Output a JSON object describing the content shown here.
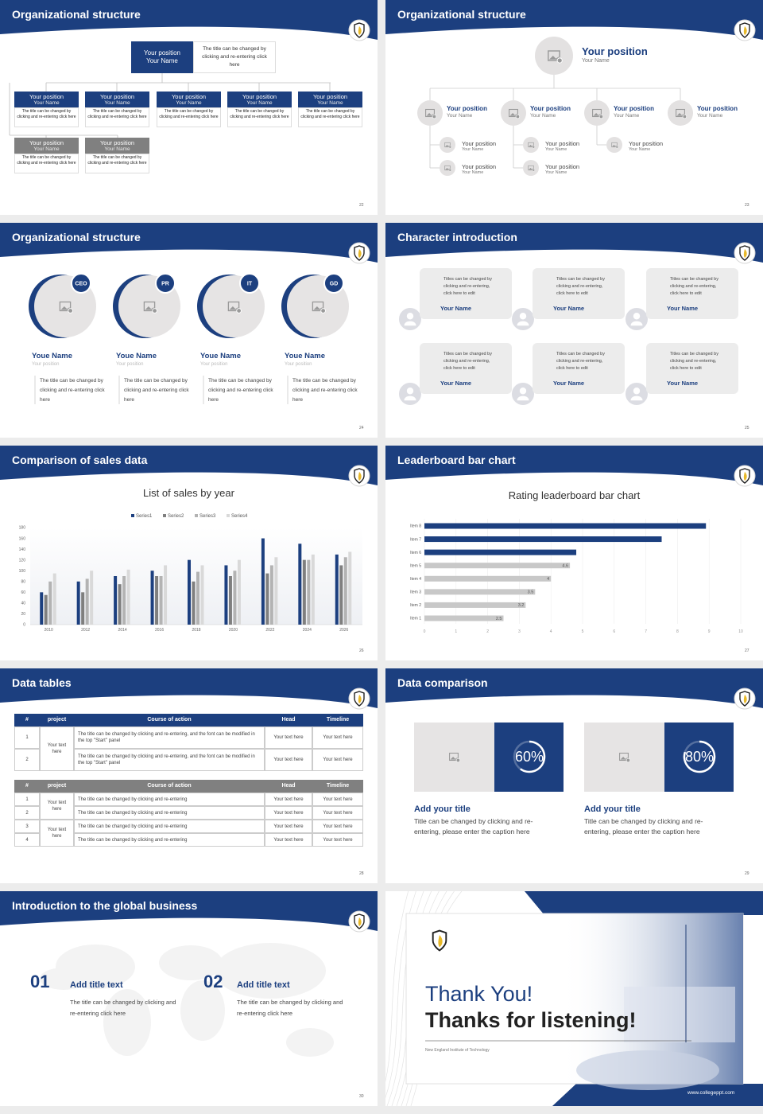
{
  "slides": [
    {
      "title": "Organizational structure",
      "page": "22",
      "top": {
        "position": "Your position",
        "name": "Your Name",
        "text": "The title can be changed by clicking and re-entering click here"
      },
      "members": [
        {
          "position": "Your position",
          "name": "Your Name",
          "text": "The title can be changed by clicking and re-entering click here"
        },
        {
          "position": "Your position",
          "name": "Your Name",
          "text": "The title can be changed by clicking and re-entering click here"
        },
        {
          "position": "Your position",
          "name": "Your Name",
          "text": "The title can be changed by clicking and re-entering click here"
        },
        {
          "position": "Your position",
          "name": "Your Name",
          "text": "The title can be changed by clicking and re-entering click here"
        },
        {
          "position": "Your position",
          "name": "Your Name",
          "text": "The title can be changed by clicking and re-entering click here"
        },
        {
          "position": "Your position",
          "name": "Your Name",
          "text": "The title can be changed by clicking and re-entering click here"
        },
        {
          "position": "Your position",
          "name": "Your Name",
          "text": "The title can be changed by clicking and re-entering click here"
        }
      ]
    },
    {
      "title": "Organizational structure",
      "page": "23",
      "top": {
        "position": "Your position",
        "name": "Your Name"
      },
      "level2": [
        {
          "position": "Your position",
          "name": "Your Name"
        },
        {
          "position": "Your position",
          "name": "Your Name"
        },
        {
          "position": "Your position",
          "name": "Your Name"
        },
        {
          "position": "Your position",
          "name": "Your Name"
        }
      ],
      "level3": [
        {
          "position": "Your position",
          "name": "Your Name"
        },
        {
          "position": "Your position",
          "name": "Your Name"
        },
        {
          "position": "Your position",
          "name": "Your Name"
        },
        {
          "position": "Your position",
          "name": "Your Name"
        },
        {
          "position": "Your position",
          "name": "Your Name"
        }
      ]
    },
    {
      "title": "Organizational structure",
      "page": "24",
      "people": [
        {
          "badge": "CEO",
          "name": "Youe Name",
          "role": "Your position",
          "text": "The title can be changed by clicking and re-entering click here"
        },
        {
          "badge": "PR",
          "name": "Youe Name",
          "role": "Your position",
          "text": "The title can be changed by clicking and re-entering click here"
        },
        {
          "badge": "IT",
          "name": "Youe Name",
          "role": "Your position",
          "text": "The title can be changed by clicking and re-entering click here"
        },
        {
          "badge": "GD",
          "name": "Youe Name",
          "role": "Your position",
          "text": "The title can be changed by clicking and re-entering click here"
        }
      ]
    },
    {
      "title": "Character introduction",
      "page": "25",
      "cards": [
        {
          "text": "Titles can be changed by clicking and re-entering, click here to edit",
          "name": "Your Name"
        },
        {
          "text": "Titles can be changed by clicking and re-entering, click here to edit",
          "name": "Your Name"
        },
        {
          "text": "Titles can be changed by clicking and re-entering, click here to edit",
          "name": "Your Name"
        },
        {
          "text": "Titles can be changed by clicking and re-entering, click here to edit",
          "name": "Your Name"
        },
        {
          "text": "Titles can be changed by clicking and re-entering, click here to edit",
          "name": "Your Name"
        },
        {
          "text": "Titles can be changed by clicking and re-entering, click here to edit",
          "name": "Your Name"
        }
      ]
    },
    {
      "title": "Comparison of sales data",
      "page": "26"
    },
    {
      "title": "Leaderboard bar chart",
      "page": "27"
    },
    {
      "title": "Data tables",
      "page": "28",
      "tables": [
        {
          "header": [
            "#",
            "project",
            "Course of action",
            "Head",
            "Timeline"
          ],
          "groups": [
            {
              "project": "Your text here",
              "rows": [
                [
                  "1",
                  "The title can be changed by clicking and re-entering, and the font can be modified in the top \"Start\" panel",
                  "Your text here",
                  "Your text here"
                ],
                [
                  "2",
                  "The title can be changed by clicking and re-entering, and the font can be modified in the top \"Start\" panel",
                  "Your text here",
                  "Your text here"
                ]
              ]
            }
          ]
        },
        {
          "header": [
            "#",
            "project",
            "Course of action",
            "Head",
            "Timeline"
          ],
          "groups": [
            {
              "project": "Your text here",
              "rows": [
                [
                  "1",
                  "The title can be changed by clicking and re-entering",
                  "Your text here",
                  "Your text here"
                ],
                [
                  "2",
                  "The title can be changed by clicking and re-entering",
                  "Your text here",
                  "Your text here"
                ]
              ]
            },
            {
              "project": "Your text here",
              "rows": [
                [
                  "3",
                  "The title can be changed by clicking and re-entering",
                  "Your text here",
                  "Your text here"
                ],
                [
                  "4",
                  "The title can be changed by clicking and re-entering",
                  "Your text here",
                  "Your text here"
                ]
              ]
            }
          ]
        }
      ]
    },
    {
      "title": "Data comparison",
      "page": "29",
      "items": [
        {
          "percent": 60,
          "percent_label": "60%",
          "title": "Add your title",
          "text": "Title can be changed by clicking and re-entering, please enter the caption here"
        },
        {
          "percent": 80,
          "percent_label": "80%",
          "title": "Add your title",
          "text": "Title can be changed by clicking and re-entering, please enter the caption here"
        }
      ]
    },
    {
      "title": "Introduction to the global business",
      "page": "30",
      "items": [
        {
          "number": "01",
          "title": "Add title text",
          "text": "The title can be changed by clicking and re-entering click here"
        },
        {
          "number": "02",
          "title": "Add title text",
          "text": "The title can be changed by clicking and re-entering click here"
        }
      ]
    },
    {
      "thanks": "Thank You!",
      "subtitle": "Thanks for listening!",
      "school": "New England Institute of Technology",
      "url": "www.collegeppt.com"
    }
  ],
  "chart_data": [
    {
      "type": "bar",
      "title": "List of sales by year",
      "categories": [
        "2010",
        "2012",
        "2014",
        "2016",
        "2018",
        "2020",
        "2022",
        "2024",
        "2026"
      ],
      "series": [
        {
          "name": "Series1",
          "color": "#1c3f7f",
          "values": [
            60,
            80,
            90,
            100,
            120,
            110,
            160,
            150,
            130
          ]
        },
        {
          "name": "Series2",
          "color": "#7f7f7f",
          "values": [
            55,
            60,
            75,
            90,
            80,
            90,
            95,
            120,
            110
          ]
        },
        {
          "name": "Series3",
          "color": "#b3b3b3",
          "values": [
            80,
            85,
            90,
            90,
            98,
            100,
            110,
            120,
            125
          ]
        },
        {
          "name": "Series4",
          "color": "#d9d9d9",
          "values": [
            95,
            100,
            102,
            110,
            110,
            120,
            125,
            130,
            135
          ]
        }
      ],
      "ylim": [
        0,
        180
      ],
      "yticks": [
        0,
        20,
        40,
        60,
        80,
        100,
        120,
        140,
        160,
        180
      ]
    },
    {
      "type": "bar",
      "horizontal": true,
      "title": "Rating leaderboard bar chart",
      "categories": [
        "Item 1",
        "Item 2",
        "Item 3",
        "Item 4",
        "Item 5",
        "Item 6",
        "Item 7",
        "Item 8"
      ],
      "values": [
        2.5,
        3.2,
        3.5,
        4,
        4.6,
        4.8,
        7.5,
        8.9
      ],
      "value_labels": [
        "2.5",
        "3.2",
        "3.5",
        "4",
        "4.6",
        null,
        null,
        null
      ],
      "colors": [
        "#c8c8c8",
        "#c8c8c8",
        "#c8c8c8",
        "#c8c8c8",
        "#c8c8c8",
        "#1c3f7f",
        "#1c3f7f",
        "#1c3f7f"
      ],
      "xlim": [
        0,
        10
      ],
      "xticks": [
        0,
        1,
        2,
        3,
        4,
        5,
        6,
        7,
        8,
        9,
        10
      ],
      "grid": true
    }
  ]
}
